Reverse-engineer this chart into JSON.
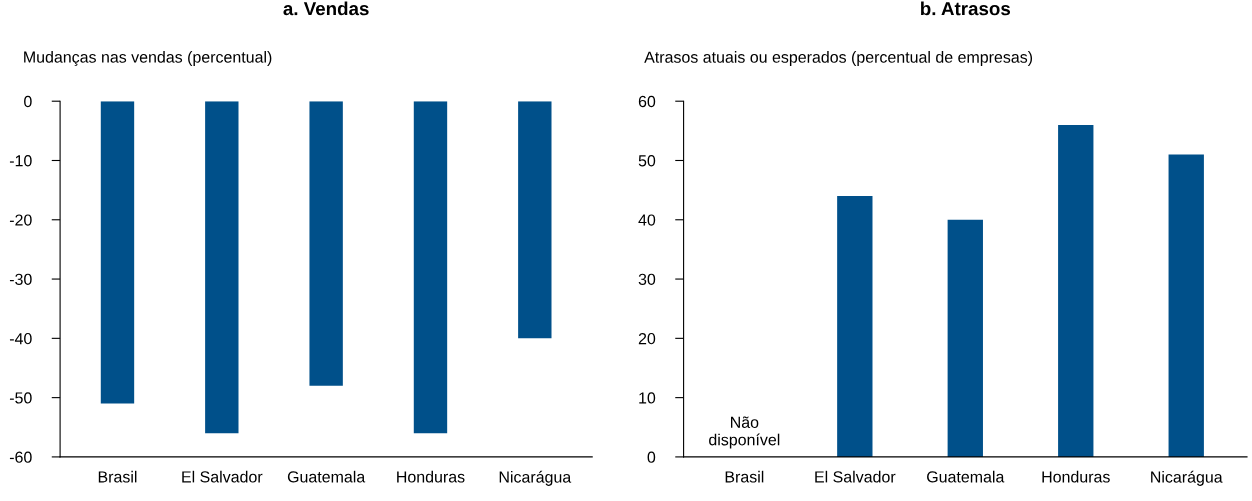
{
  "chart_data": [
    {
      "type": "bar",
      "title": "a. Vendas",
      "ylabel": "Mudanças nas vendas (percentual)",
      "categories": [
        "Brasil",
        "El Salvador",
        "Guatemala",
        "Honduras",
        "Nicarágua"
      ],
      "series": [
        {
          "color": "#00508a",
          "values": [
            -51,
            -56,
            -48,
            -56,
            -40
          ]
        }
      ],
      "ylim": [
        -60,
        0
      ],
      "yticks": [
        -60,
        -50,
        -40,
        -30,
        -20,
        -10,
        0
      ],
      "grid": false
    },
    {
      "type": "bar",
      "title": "b. Atrasos",
      "ylabel": "Atrasos atuais ou esperados (percentual de empresas)",
      "categories": [
        "Brasil",
        "El Salvador",
        "Guatemala",
        "Honduras",
        "Nicarágua"
      ],
      "series": [
        {
          "color": "#00508a",
          "values": [
            null,
            44,
            40,
            56,
            51
          ]
        }
      ],
      "ylim": [
        0,
        60
      ],
      "yticks": [
        0,
        10,
        20,
        30,
        40,
        50,
        60
      ],
      "grid": false,
      "annotations": [
        "Não\ndisponível"
      ]
    }
  ]
}
